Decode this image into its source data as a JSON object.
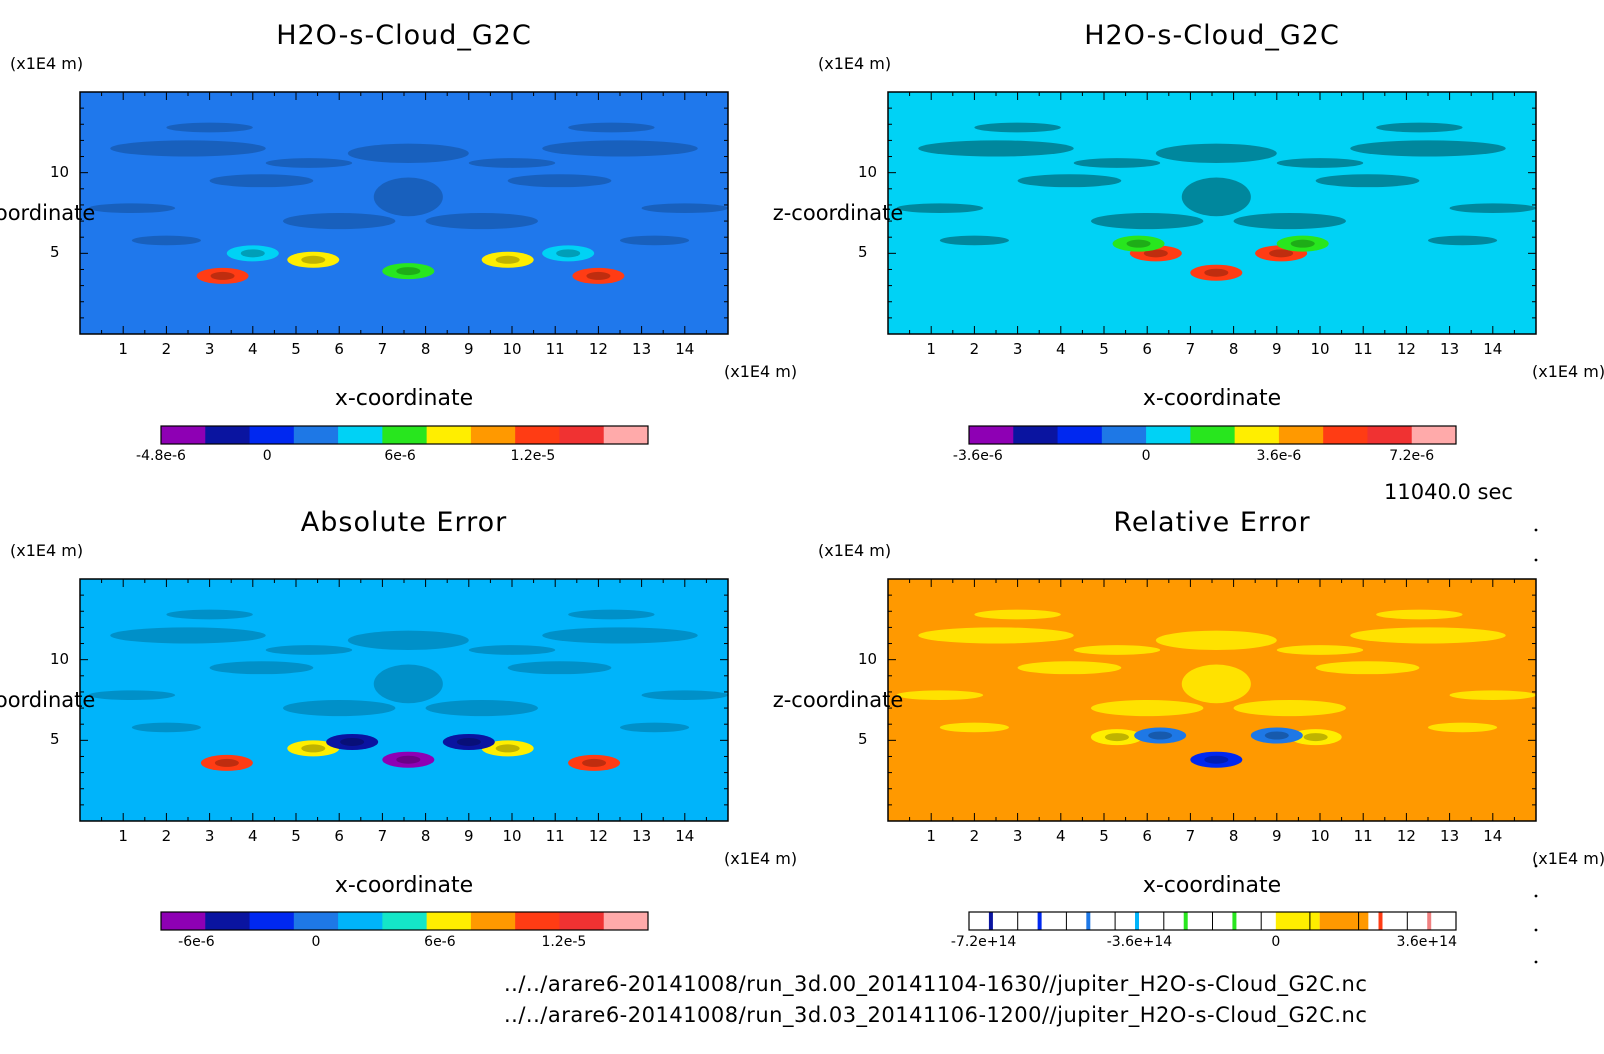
{
  "time_label": "11040.0 sec",
  "file_paths": [
    "../../arare6-20141008/run_3d.00_20141104-1630//jupiter_H2O-s-Cloud_G2C.nc",
    "../../arare6-20141008/run_3d.03_20141106-1200//jupiter_H2O-s-Cloud_G2C.nc"
  ],
  "chart_data": [
    {
      "type": "heatmap",
      "title": "H2O-s-Cloud_G2C",
      "xlabel": "x-coordinate",
      "ylabel": "z-coordinate",
      "x_unit": "(x1E4 m)",
      "y_unit": "(x1E4 m)",
      "xlim": [
        0,
        15
      ],
      "ylim": [
        0,
        15
      ],
      "xticks": [
        1,
        2,
        3,
        4,
        5,
        6,
        7,
        8,
        9,
        10,
        11,
        12,
        13,
        14
      ],
      "yticks": [
        5,
        10
      ],
      "background": "#1f78ec",
      "colorbar": {
        "colors": [
          "#8e00b4",
          "#0a14a0",
          "#0028f0",
          "#1e78e6",
          "#00d2f5",
          "#28e61e",
          "#ffee00",
          "#ff9900",
          "#ff3c14",
          "#f03232",
          "#ffaaaa"
        ],
        "labels": [
          {
            "v": 0,
            "t": "-4.8e-6"
          },
          {
            "v": 2.4,
            "t": "0"
          },
          {
            "v": 5.4,
            "t": "6e-6"
          },
          {
            "v": 8.4,
            "t": "1.2e-5"
          }
        ]
      },
      "features": [
        {
          "x": 3.3,
          "z": 3.6,
          "c": "#ff3c14"
        },
        {
          "x": 12.0,
          "z": 3.6,
          "c": "#ff3c14"
        },
        {
          "x": 5.4,
          "z": 4.6,
          "c": "#ffee00"
        },
        {
          "x": 9.9,
          "z": 4.6,
          "c": "#ffee00"
        },
        {
          "x": 7.6,
          "z": 3.9,
          "c": "#28e61e"
        },
        {
          "x": 4.0,
          "z": 5.0,
          "c": "#00d2f5"
        },
        {
          "x": 11.3,
          "z": 5.0,
          "c": "#00d2f5"
        }
      ]
    },
    {
      "type": "heatmap",
      "title": "H2O-s-Cloud_G2C",
      "xlabel": "x-coordinate",
      "ylabel": "z-coordinate",
      "x_unit": "(x1E4 m)",
      "y_unit": "(x1E4 m)",
      "xlim": [
        0,
        15
      ],
      "ylim": [
        0,
        15
      ],
      "xticks": [
        1,
        2,
        3,
        4,
        5,
        6,
        7,
        8,
        9,
        10,
        11,
        12,
        13,
        14
      ],
      "yticks": [
        5,
        10
      ],
      "background": "#00d2f5",
      "colorbar": {
        "colors": [
          "#8e00b4",
          "#0a14a0",
          "#0028f0",
          "#1e78e6",
          "#00d2f5",
          "#28e61e",
          "#ffee00",
          "#ff9900",
          "#ff3c14",
          "#f03232",
          "#ffaaaa"
        ],
        "labels": [
          {
            "v": 0.2,
            "t": "-3.6e-6"
          },
          {
            "v": 4,
            "t": "0"
          },
          {
            "v": 7,
            "t": "3.6e-6"
          },
          {
            "v": 10,
            "t": "7.2e-6"
          }
        ]
      },
      "features": [
        {
          "x": 6.2,
          "z": 5.0,
          "c": "#ff3c14"
        },
        {
          "x": 9.1,
          "z": 5.0,
          "c": "#ff3c14"
        },
        {
          "x": 7.6,
          "z": 3.8,
          "c": "#ff3c14"
        },
        {
          "x": 5.8,
          "z": 5.6,
          "c": "#28e61e"
        },
        {
          "x": 9.6,
          "z": 5.6,
          "c": "#28e61e"
        }
      ]
    },
    {
      "type": "heatmap",
      "title": "Absolute Error",
      "xlabel": "x-coordinate",
      "ylabel": "z-coordinate",
      "x_unit": "(x1E4 m)",
      "y_unit": "(x1E4 m)",
      "xlim": [
        0,
        15
      ],
      "ylim": [
        0,
        15
      ],
      "xticks": [
        1,
        2,
        3,
        4,
        5,
        6,
        7,
        8,
        9,
        10,
        11,
        12,
        13,
        14
      ],
      "yticks": [
        5,
        10
      ],
      "background": "#00b4fa",
      "colorbar": {
        "colors": [
          "#8e00b4",
          "#0a14a0",
          "#0028f0",
          "#1e78e6",
          "#00b4fa",
          "#14e6c8",
          "#ffee00",
          "#ff9900",
          "#ff3c14",
          "#f03232",
          "#ffaaaa"
        ],
        "labels": [
          {
            "v": 0.8,
            "t": "-6e-6"
          },
          {
            "v": 3.5,
            "t": "0"
          },
          {
            "v": 6.3,
            "t": "6e-6"
          },
          {
            "v": 9.1,
            "t": "1.2e-5"
          }
        ]
      },
      "features": [
        {
          "x": 3.4,
          "z": 3.6,
          "c": "#ff3c14"
        },
        {
          "x": 11.9,
          "z": 3.6,
          "c": "#ff3c14"
        },
        {
          "x": 5.4,
          "z": 4.5,
          "c": "#ffee00"
        },
        {
          "x": 9.9,
          "z": 4.5,
          "c": "#ffee00"
        },
        {
          "x": 6.3,
          "z": 4.9,
          "c": "#0a14a0"
        },
        {
          "x": 9.0,
          "z": 4.9,
          "c": "#0a14a0"
        },
        {
          "x": 7.6,
          "z": 3.8,
          "c": "#8e00b4"
        }
      ]
    },
    {
      "type": "heatmap",
      "title": "Relative Error",
      "xlabel": "x-coordinate",
      "ylabel": "z-coordinate",
      "x_unit": "(x1E4 m)",
      "y_unit": "(x1E4 m)",
      "xlim": [
        0,
        15
      ],
      "ylim": [
        0,
        15
      ],
      "xticks": [
        1,
        2,
        3,
        4,
        5,
        6,
        7,
        8,
        9,
        10,
        11,
        12,
        13,
        14
      ],
      "yticks": [
        5,
        10
      ],
      "background": "#ff9900",
      "colorbar": {
        "style": "lines",
        "colors": [
          "#0a14a0",
          "#0028f0",
          "#1e78e6",
          "#00b4fa",
          "#28e61e",
          "#28e61e",
          "#ffee00",
          "#ff9900",
          "#ff3c14",
          "#f08080"
        ],
        "labels": [
          {
            "v": 0.3,
            "t": "-7.2e+14"
          },
          {
            "v": 3.5,
            "t": "-3.6e+14"
          },
          {
            "v": 6.3,
            "t": "0"
          },
          {
            "v": 9.4,
            "t": "3.6e+14"
          }
        ]
      },
      "features": [
        {
          "x": 5.3,
          "z": 5.2,
          "c": "#ffee00"
        },
        {
          "x": 9.9,
          "z": 5.2,
          "c": "#ffee00"
        },
        {
          "x": 6.3,
          "z": 5.3,
          "c": "#1e78e6"
        },
        {
          "x": 9.0,
          "z": 5.3,
          "c": "#1e78e6"
        },
        {
          "x": 7.6,
          "z": 3.8,
          "c": "#0028f0"
        }
      ]
    }
  ]
}
